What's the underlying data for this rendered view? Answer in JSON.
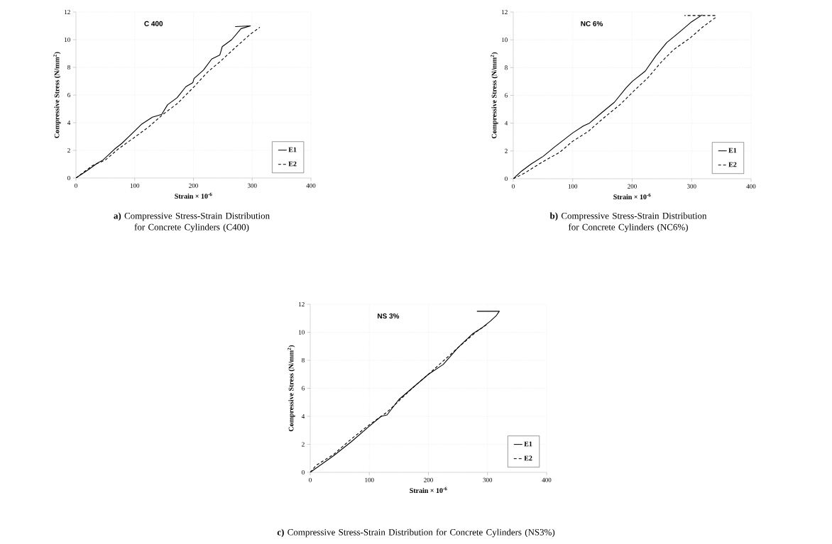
{
  "chart_data": [
    {
      "type": "line",
      "title": "C 400",
      "xlabel": "Strain × 10$^{-6}$",
      "ylabel": "Compressive Stress (N/mm$^{2}$)",
      "annotations": [
        "**a)** Compressive Stress-Strain Distribution for Concrete Cylinders (C400)"
      ],
      "xlim": [
        0,
        400
      ],
      "ylim": [
        0,
        12
      ],
      "xticks": [
        0,
        100,
        200,
        300,
        400
      ],
      "yticks": [
        0,
        2,
        4,
        6,
        8,
        10,
        12
      ],
      "grid": true,
      "legend": "bottom right",
      "series": [
        {
          "name": "E1",
          "color": "#000000",
          "line_style": "solid",
          "x": [
            0,
            22,
            36,
            46,
            66,
            78,
            100,
            112,
            130,
            146,
            156,
            172,
            187,
            199,
            201,
            217,
            231,
            245,
            249,
            265,
            281,
            297,
            271
          ],
          "values": [
            0,
            0.63,
            1.06,
            1.3,
            2.1,
            2.5,
            3.4,
            3.9,
            4.4,
            4.6,
            5.3,
            5.8,
            6.6,
            6.9,
            7.2,
            7.8,
            8.6,
            8.9,
            9.5,
            10.0,
            10.8,
            11.0,
            10.95
          ]
        },
        {
          "name": "E2",
          "color": "#000000",
          "line_style": "dashed",
          "x": [
            0,
            28,
            50,
            72,
            100,
            124,
            148,
            173,
            201,
            225,
            245,
            273,
            297,
            313
          ],
          "values": [
            0,
            0.9,
            1.3,
            2.1,
            2.95,
            3.7,
            4.6,
            5.4,
            6.6,
            7.7,
            8.4,
            9.5,
            10.4,
            10.9
          ]
        }
      ]
    },
    {
      "type": "line",
      "title": "NC 6%",
      "xlabel": "Strain × 10$^{-6}$",
      "ylabel": "Compressive Stress (N/mm$^{2}$)",
      "annotations": [
        "**b)** Compressive Stress-Strain Distribution for Concrete Cylinders (NC6%)"
      ],
      "xlim": [
        0,
        400
      ],
      "ylim": [
        0,
        12
      ],
      "xticks": [
        0,
        100,
        200,
        300,
        400
      ],
      "yticks": [
        0,
        2,
        4,
        6,
        8,
        10,
        12
      ],
      "grid": true,
      "legend": "bottom right",
      "series": [
        {
          "name": "E1",
          "color": "#000000",
          "line_style": "solid",
          "x": [
            0,
            14,
            30,
            50,
            70,
            100,
            118,
            128,
            150,
            170,
            190,
            200,
            222,
            240,
            258,
            278,
            300,
            318
          ],
          "values": [
            0,
            0.55,
            1.06,
            1.6,
            2.3,
            3.3,
            3.8,
            4.0,
            4.8,
            5.5,
            6.55,
            7.0,
            7.75,
            8.85,
            9.8,
            10.5,
            11.3,
            11.8
          ]
        },
        {
          "name": "E2",
          "color": "#000000",
          "line_style": "dashed",
          "x": [
            0,
            18,
            50,
            78,
            100,
            126,
            150,
            180,
            200,
            226,
            250,
            270,
            298,
            318,
            340,
            340,
            288
          ],
          "values": [
            0,
            0.38,
            1.23,
            1.9,
            2.7,
            3.4,
            4.3,
            5.35,
            6.2,
            7.25,
            8.45,
            9.3,
            10.15,
            10.9,
            11.6,
            11.75,
            11.75
          ]
        }
      ]
    },
    {
      "type": "line",
      "title": "NS 3%",
      "xlabel": "Strain × 10$^{-6}$",
      "ylabel": "Compressive Stress (N/mm$^{2}$)",
      "annotations": [
        "**c)** Compressive Stress-Strain Distribution for Concrete Cylinders (NS3%)"
      ],
      "xlim": [
        0,
        400
      ],
      "ylim": [
        0,
        12
      ],
      "xticks": [
        0,
        100,
        200,
        300,
        400
      ],
      "yticks": [
        0,
        2,
        4,
        6,
        8,
        10,
        12
      ],
      "grid": true,
      "legend": "bottom right",
      "series": [
        {
          "name": "E1",
          "color": "#000000",
          "line_style": "solid",
          "x": [
            0,
            40,
            70,
            100,
            120,
            130,
            150,
            175,
            200,
            225,
            250,
            275,
            290,
            305,
            315,
            320,
            282
          ],
          "values": [
            0,
            1.2,
            2.2,
            3.3,
            4.0,
            4.1,
            5.2,
            6.1,
            7.0,
            7.7,
            8.9,
            9.9,
            10.3,
            10.8,
            11.2,
            11.5,
            11.5
          ]
        },
        {
          "name": "E2",
          "color": "#000000",
          "line_style": "dashed",
          "x": [
            0,
            10,
            25,
            40,
            70,
            100,
            130,
            150,
            175,
            200,
            250,
            280,
            300
          ],
          "values": [
            0,
            0.5,
            0.9,
            1.3,
            2.4,
            3.4,
            4.3,
            5.1,
            6.1,
            7.0,
            8.9,
            10.0,
            10.6
          ]
        }
      ]
    }
  ]
}
